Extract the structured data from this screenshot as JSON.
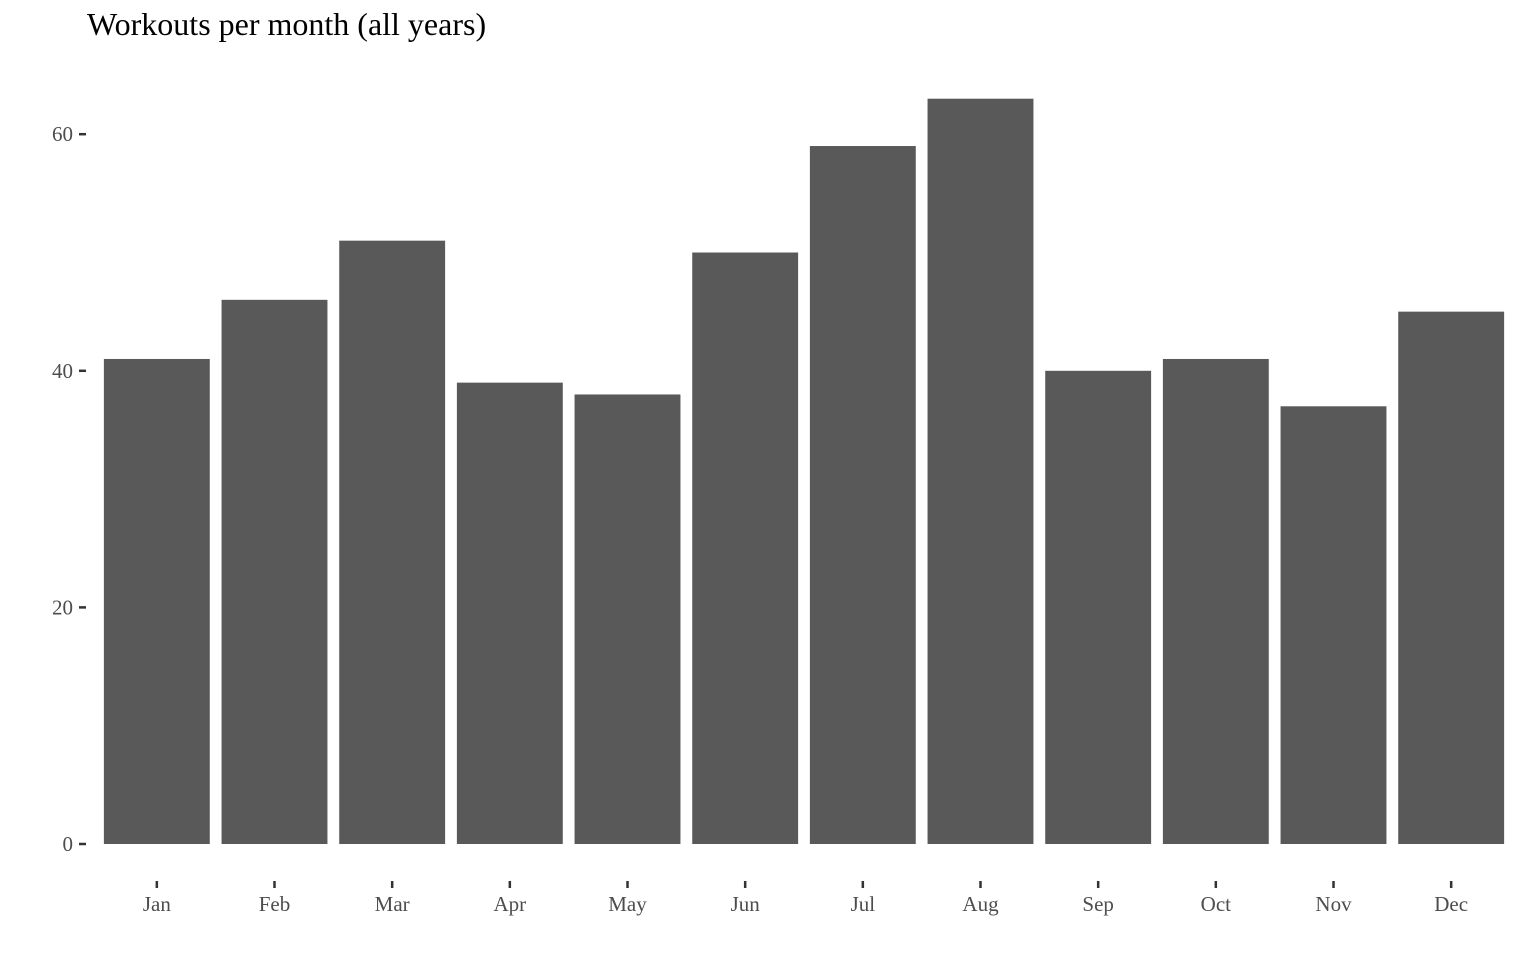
{
  "chart_data": {
    "type": "bar",
    "title": "Workouts per month (all years)",
    "xlabel": "",
    "ylabel": "",
    "categories": [
      "Jan",
      "Feb",
      "Mar",
      "Apr",
      "May",
      "Jun",
      "Jul",
      "Aug",
      "Sep",
      "Oct",
      "Nov",
      "Dec"
    ],
    "values": [
      41,
      46,
      51,
      39,
      38,
      50,
      59,
      63,
      40,
      41,
      37,
      45
    ],
    "ylim": [
      0,
      63
    ],
    "yticks": [
      0,
      20,
      40,
      60
    ],
    "grid": false,
    "legend": "none",
    "bar_color": "#595959",
    "axis_text_color": "#4d4d4d",
    "tick_color": "#333333"
  }
}
